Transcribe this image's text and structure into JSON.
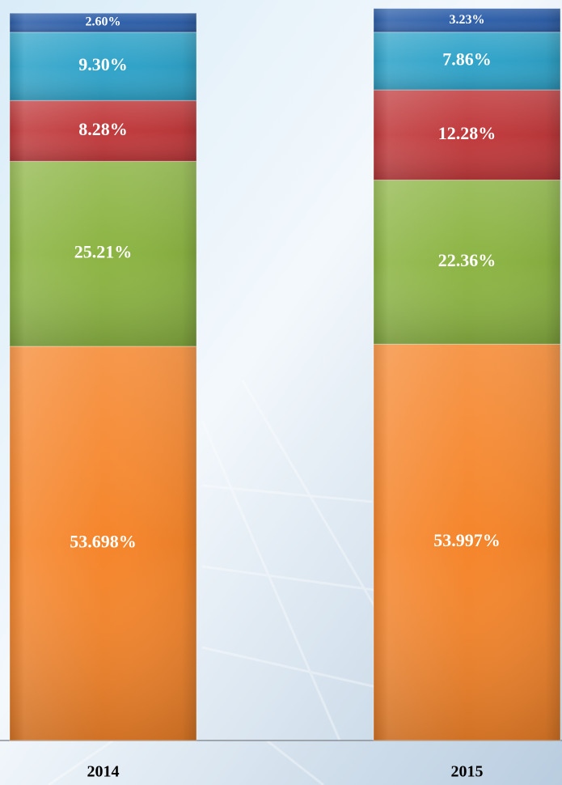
{
  "chart_data": {
    "type": "stacked_bar",
    "categories": [
      "2014",
      "2015"
    ],
    "series": [
      {
        "color": "#f5852b",
        "values": [
          53.698,
          53.997
        ],
        "value_labels": [
          "53.698%",
          "53.997%"
        ]
      },
      {
        "color": "#8cb443",
        "values": [
          25.21,
          22.36
        ],
        "value_labels": [
          "25.21%",
          "22.36%"
        ]
      },
      {
        "color": "#c0393b",
        "values": [
          8.28,
          12.28
        ],
        "value_labels": [
          "8.28%",
          "12.28%"
        ]
      },
      {
        "color": "#2fa3c9",
        "values": [
          9.3,
          7.86
        ],
        "value_labels": [
          "9.30%",
          "7.86%"
        ]
      },
      {
        "color": "#2e5fa9",
        "values": [
          2.6,
          3.23
        ],
        "value_labels": [
          "2.60%",
          "3.23%"
        ]
      }
    ],
    "ylim": [
      0,
      100
    ]
  }
}
